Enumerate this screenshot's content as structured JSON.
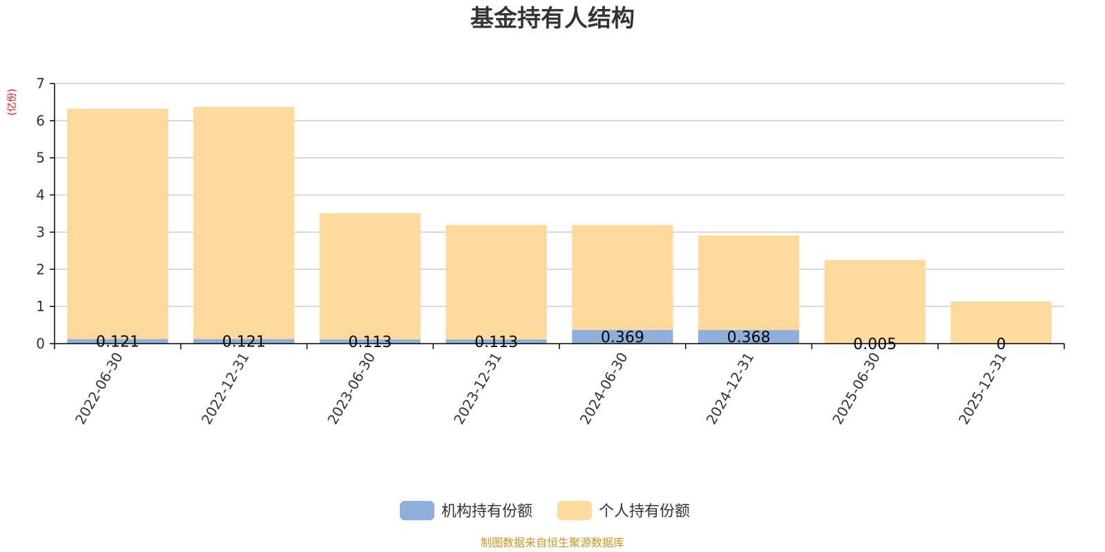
{
  "chart_data": {
    "type": "bar",
    "stacked": true,
    "title": "基金持有人结构",
    "y_unit_label": "(亿份)",
    "ylim": [
      0,
      7
    ],
    "y_ticks": [
      "0",
      "1",
      "2",
      "3",
      "4",
      "5",
      "6",
      "7"
    ],
    "grid": true,
    "categories": [
      "2022-06-30",
      "2022-12-31",
      "2023-06-30",
      "2023-12-31",
      "2024-06-30",
      "2024-12-31",
      "2025-06-30",
      "2025-12-31"
    ],
    "series": [
      {
        "name": "机构持有份额",
        "color": "#8eaedb",
        "values": [
          0.121,
          0.121,
          0.113,
          0.113,
          0.369,
          0.368,
          0.005,
          0
        ],
        "labels": [
          "0.121",
          "0.121",
          "0.113",
          "0.113",
          "0.369",
          "0.368",
          "0.005",
          "0"
        ]
      },
      {
        "name": "个人持有份额",
        "color": "#fdd99b",
        "values": [
          6.199,
          6.249,
          3.397,
          3.077,
          2.821,
          2.542,
          2.245,
          1.13
        ]
      }
    ],
    "legend_position": "bottom"
  },
  "source": "制图数据来自恒生聚源数据库"
}
